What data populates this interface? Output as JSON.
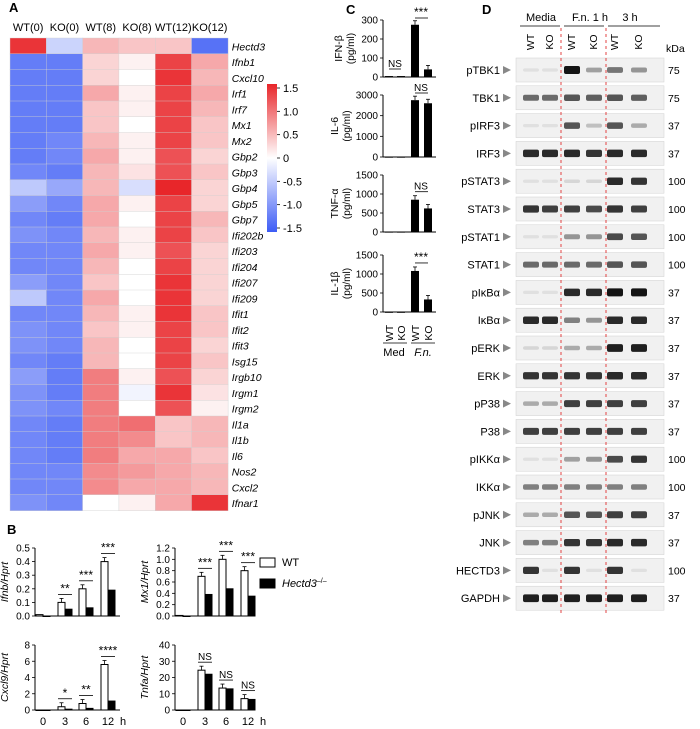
{
  "panels": {
    "A": "A",
    "B": "B",
    "C": "C",
    "D": "D"
  },
  "heatmap": {
    "columns": [
      "WT(0)",
      "KO(0)",
      "WT(8)",
      "KO(8)",
      "WT(12)",
      "KO(12)"
    ],
    "genes": [
      "Hectd3",
      "Ifnb1",
      "Cxcl10",
      "Irf1",
      "Irf7",
      "Mx1",
      "Mx2",
      "Gbp2",
      "Gbp3",
      "Gbp4",
      "Gbp5",
      "Gbp7",
      "Ifi202b",
      "Ifi203",
      "Ifi204",
      "Ifi207",
      "Ifi209",
      "Ifit1",
      "Ifit2",
      "Ifit3",
      "Isg15",
      "Irgb10",
      "Irgm1",
      "Irgm2",
      "Il1a",
      "Il1b",
      "Il6",
      "Nos2",
      "Cxcl2",
      "Ifnar1"
    ],
    "values": [
      [
        1.4,
        -0.4,
        0.5,
        0.4,
        0.4,
        -1.3
      ],
      [
        -1.2,
        -1.2,
        0.3,
        0.1,
        1.3,
        0.6
      ],
      [
        -1.2,
        -1.2,
        0.3,
        0.0,
        1.4,
        0.5
      ],
      [
        -1.2,
        -1.2,
        0.6,
        0.1,
        1.3,
        0.6
      ],
      [
        -1.2,
        -1.2,
        0.4,
        0.1,
        1.3,
        0.5
      ],
      [
        -1.2,
        -1.2,
        0.4,
        0.0,
        1.3,
        0.4
      ],
      [
        -1.2,
        -1.1,
        0.5,
        0.1,
        1.3,
        0.4
      ],
      [
        -1.2,
        -1.1,
        0.6,
        0.1,
        1.2,
        0.3
      ],
      [
        -1.1,
        -1.2,
        0.5,
        0.2,
        1.2,
        0.4
      ],
      [
        -0.5,
        -0.8,
        0.5,
        -0.3,
        1.6,
        0.3
      ],
      [
        -0.9,
        -1.1,
        0.6,
        0.1,
        1.3,
        0.3
      ],
      [
        -1.1,
        -1.2,
        0.6,
        0.0,
        1.3,
        0.5
      ],
      [
        -1.0,
        -1.1,
        0.5,
        0.1,
        1.3,
        0.4
      ],
      [
        -1.1,
        -1.1,
        0.6,
        0.1,
        1.2,
        0.3
      ],
      [
        -1.1,
        -1.1,
        0.5,
        0.0,
        1.3,
        0.3
      ],
      [
        -0.9,
        -1.1,
        0.4,
        0.0,
        1.4,
        0.3
      ],
      [
        -0.5,
        -1.1,
        0.6,
        0.0,
        1.4,
        0.3
      ],
      [
        -1.1,
        -1.1,
        0.5,
        0.1,
        1.4,
        0.4
      ],
      [
        -1.0,
        -1.1,
        0.4,
        0.1,
        1.3,
        0.4
      ],
      [
        -1.0,
        -1.1,
        0.5,
        0.0,
        1.3,
        0.3
      ],
      [
        -1.1,
        -1.2,
        0.5,
        0.0,
        1.3,
        0.4
      ],
      [
        -0.9,
        -1.2,
        0.9,
        0.1,
        1.2,
        0.3
      ],
      [
        -1.0,
        -1.2,
        0.9,
        -0.1,
        1.4,
        0.2
      ],
      [
        -1.0,
        -1.1,
        0.9,
        0.0,
        1.2,
        0.1
      ],
      [
        -1.1,
        -1.2,
        0.9,
        1.0,
        0.4,
        0.5
      ],
      [
        -1.1,
        -1.2,
        0.9,
        0.8,
        0.4,
        0.5
      ],
      [
        -1.1,
        -1.2,
        0.9,
        0.6,
        0.6,
        0.4
      ],
      [
        -1.1,
        -1.1,
        0.8,
        0.7,
        0.6,
        0.5
      ],
      [
        -1.1,
        -1.1,
        0.8,
        0.6,
        0.6,
        0.5
      ],
      [
        -1.0,
        -1.1,
        0.0,
        0.1,
        0.6,
        1.4
      ]
    ],
    "scale_ticks": [
      "1.5",
      "1.0",
      "0.5",
      "0",
      "-0.5",
      "-1.0",
      "-1.5"
    ],
    "color_low": "#3d5cf5",
    "color_mid": "#ffffff",
    "color_high": "#e8262a"
  },
  "panel_b": {
    "xticks": [
      "0",
      "3",
      "6",
      "12"
    ],
    "x_unit": "h",
    "legend": {
      "wt": "WT",
      "ko": "Hectd3",
      "ko_sup": "–/–"
    },
    "subplots": [
      {
        "ylabel": "Ifnb/Hprt",
        "yticks": [
          "0.0",
          "0.1",
          "0.2",
          "0.3",
          "0.4",
          "0.5"
        ],
        "ymax": 0.5,
        "wt": [
          0.01,
          0.1,
          0.2,
          0.4
        ],
        "ko": [
          0.0,
          0.05,
          0.06,
          0.19
        ],
        "sig": [
          "",
          "**",
          "***",
          "***"
        ]
      },
      {
        "ylabel": "Mx1/Hprt",
        "yticks": [
          "0.0",
          "0.2",
          "0.4",
          "0.6",
          "0.8",
          "1.0",
          "1.2"
        ],
        "ymax": 1.2,
        "wt": [
          0.01,
          0.7,
          1.0,
          0.8
        ],
        "ko": [
          0.0,
          0.38,
          0.48,
          0.35
        ],
        "sig": [
          "",
          "***",
          "***",
          "***"
        ]
      },
      {
        "ylabel": "Cxcl9/Hprt",
        "yticks": [
          "0",
          "2",
          "4",
          "6",
          "8"
        ],
        "ymax": 8,
        "wt": [
          0.0,
          0.4,
          0.8,
          5.6
        ],
        "ko": [
          0.0,
          0.1,
          0.2,
          1.1
        ],
        "sig": [
          "",
          "*",
          "**",
          "****"
        ]
      },
      {
        "ylabel": "Tnfa/Hprt",
        "yticks": [
          "0",
          "10",
          "20",
          "30",
          "40"
        ],
        "ymax": 40,
        "wt": [
          0.0,
          24.5,
          13.5,
          7.0
        ],
        "ko": [
          0.0,
          22.0,
          13.0,
          6.5
        ],
        "sig": [
          "",
          "NS",
          "NS",
          "NS"
        ]
      }
    ]
  },
  "panel_c": {
    "groups": [
      "WT",
      "KO",
      "WT",
      "KO"
    ],
    "group_labels": [
      "Med",
      "F.n."
    ],
    "subplots": [
      {
        "ylabel1": "IFN-β",
        "ylabel2": "(pg/ml)",
        "yticks": [
          "0",
          "100",
          "200",
          "300"
        ],
        "ymax": 300,
        "values": [
          5,
          5,
          275,
          40
        ],
        "sig_low": "NS",
        "sig_high": "***"
      },
      {
        "ylabel1": "IL-6",
        "ylabel2": "(pg/ml)",
        "yticks": [
          "0",
          "1000",
          "2000",
          "3000"
        ],
        "ymax": 3000,
        "values": [
          15,
          15,
          2750,
          2600
        ],
        "sig_low": "",
        "sig_high": "NS"
      },
      {
        "ylabel1": "TNF-α",
        "ylabel2": "(pg/ml)",
        "yticks": [
          "0",
          "500",
          "1000",
          "1500"
        ],
        "ymax": 1500,
        "values": [
          10,
          10,
          850,
          620
        ],
        "sig_low": "",
        "sig_high": "NS"
      },
      {
        "ylabel1": "IL-1β",
        "ylabel2": "(pg/ml)",
        "yticks": [
          "0",
          "500",
          "1000",
          "1500"
        ],
        "ymax": 1500,
        "values": [
          5,
          5,
          1080,
          330
        ],
        "sig_low": "",
        "sig_high": "***"
      }
    ]
  },
  "panel_d": {
    "conditions": [
      "Media",
      "F.n. 1 h",
      "3 h"
    ],
    "lanes": [
      "WT",
      "KO",
      "WT",
      "KO",
      "WT",
      "KO"
    ],
    "kda_label": "kDa",
    "blots": [
      {
        "name": "pTBK1",
        "kda": "75",
        "intensity": [
          0.05,
          0.05,
          1.0,
          0.35,
          0.55,
          0.4
        ]
      },
      {
        "name": "TBK1",
        "kda": "75",
        "intensity": [
          0.6,
          0.6,
          0.7,
          0.65,
          0.7,
          0.65
        ]
      },
      {
        "name": "pIRF3",
        "kda": "37",
        "intensity": [
          0.05,
          0.05,
          0.7,
          0.2,
          0.7,
          0.3
        ]
      },
      {
        "name": "IRF3",
        "kda": "37",
        "intensity": [
          0.9,
          0.9,
          0.9,
          0.85,
          0.9,
          0.9
        ]
      },
      {
        "name": "pSTAT3",
        "kda": "100",
        "intensity": [
          0.05,
          0.05,
          0.1,
          0.1,
          0.9,
          0.85
        ]
      },
      {
        "name": "STAT3",
        "kda": "100",
        "intensity": [
          0.85,
          0.8,
          0.8,
          0.75,
          0.85,
          0.8
        ]
      },
      {
        "name": "pSTAT1",
        "kda": "100",
        "intensity": [
          0.05,
          0.05,
          0.4,
          0.4,
          0.75,
          0.7
        ]
      },
      {
        "name": "STAT1",
        "kda": "100",
        "intensity": [
          0.6,
          0.6,
          0.6,
          0.6,
          0.7,
          0.7
        ]
      },
      {
        "name": "pIκBα",
        "kda": "37",
        "intensity": [
          0.05,
          0.05,
          0.9,
          0.9,
          1.0,
          1.0
        ]
      },
      {
        "name": "IκBα",
        "kda": "37",
        "intensity": [
          0.9,
          0.9,
          0.5,
          0.4,
          0.9,
          0.9
        ]
      },
      {
        "name": "pERK",
        "kda": "37",
        "intensity": [
          0.1,
          0.1,
          0.3,
          0.3,
          0.95,
          0.95
        ]
      },
      {
        "name": "ERK",
        "kda": "37",
        "intensity": [
          0.85,
          0.85,
          0.85,
          0.85,
          0.9,
          0.9
        ]
      },
      {
        "name": "pP38",
        "kda": "37",
        "intensity": [
          0.3,
          0.3,
          0.8,
          0.8,
          0.8,
          0.8
        ]
      },
      {
        "name": "P38",
        "kda": "37",
        "intensity": [
          0.8,
          0.8,
          0.8,
          0.8,
          0.8,
          0.8
        ]
      },
      {
        "name": "pIKKα",
        "kda": "100",
        "intensity": [
          0.05,
          0.05,
          0.35,
          0.4,
          0.75,
          0.85
        ]
      },
      {
        "name": "IKKα",
        "kda": "100",
        "intensity": [
          0.5,
          0.5,
          0.5,
          0.5,
          0.5,
          0.5
        ]
      },
      {
        "name": "pJNK",
        "kda": "37",
        "intensity": [
          0.3,
          0.3,
          0.7,
          0.7,
          0.8,
          0.8
        ]
      },
      {
        "name": "JNK",
        "kda": "37",
        "intensity": [
          0.5,
          0.5,
          0.85,
          0.85,
          0.9,
          0.9
        ]
      },
      {
        "name": "HECTD3",
        "kda": "100",
        "intensity": [
          0.85,
          0.05,
          0.85,
          0.05,
          0.85,
          0.05
        ]
      },
      {
        "name": "GAPDH",
        "kda": "37",
        "intensity": [
          0.95,
          0.95,
          0.95,
          0.95,
          0.95,
          0.95
        ]
      }
    ]
  }
}
